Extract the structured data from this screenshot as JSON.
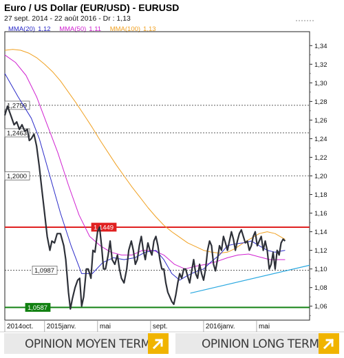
{
  "header": {
    "title": "Euro / US Dollar (EUR/USD) - EURUSD",
    "subtitle": "27 sept. 2014 - 22 août 2016 - Dr : 1,13"
  },
  "legend": [
    {
      "label": "MMA(20)",
      "value": "1,12",
      "color": "#2a2ac8"
    },
    {
      "label": "MMA(50)",
      "value": "1,11",
      "color": "#d020d0"
    },
    {
      "label": "MMA(100)",
      "value": "1,13",
      "color": "#f0a020"
    }
  ],
  "footer": {
    "left_label": "OPINION MOYEN TERME",
    "right_label": "OPINION LONG TERME",
    "arrow_icon": "arrow-up-right-icon",
    "accent": "#f0b400"
  },
  "chart_data": {
    "type": "line",
    "ylim": [
      1.045,
      1.355
    ],
    "y_ticks": [
      "1,06",
      "1,08",
      "1,10",
      "1,12",
      "1,14",
      "1,16",
      "1,18",
      "1,20",
      "1,22",
      "1,24",
      "1,26",
      "1,28",
      "1,30",
      "1,32",
      "1,34"
    ],
    "y_tick_values": [
      1.06,
      1.08,
      1.1,
      1.12,
      1.14,
      1.16,
      1.18,
      1.2,
      1.22,
      1.24,
      1.26,
      1.28,
      1.3,
      1.32,
      1.34
    ],
    "x_ticks": [
      {
        "label": "2014oct.",
        "x": 0
      },
      {
        "label": "2015janv.",
        "x": 3
      },
      {
        "label": "mai",
        "x": 7
      },
      {
        "label": "sept.",
        "x": 11
      },
      {
        "label": "2016janv.",
        "x": 15
      },
      {
        "label": "mai",
        "x": 19
      }
    ],
    "x_range": [
      0,
      23
    ],
    "grid": false,
    "levels": [
      {
        "label": "1,2759",
        "value": 1.2759,
        "style": "dashed",
        "color": "#444444"
      },
      {
        "label": "1,2463",
        "value": 1.2463,
        "style": "dashed",
        "color": "#444444"
      },
      {
        "label": "1,2000",
        "value": 1.2,
        "style": "dashed",
        "color": "#444444"
      },
      {
        "label": "1,1449",
        "value": 1.1449,
        "style": "solid",
        "color": "#e02020"
      },
      {
        "label": "1,0987",
        "value": 1.0987,
        "style": "dashed",
        "color": "#444444"
      },
      {
        "label": "1,0587",
        "value": 1.0587,
        "style": "solid",
        "color": "#108010"
      }
    ],
    "trendline": {
      "color": "#29a8e0",
      "points": [
        [
          14.0,
          1.074
        ],
        [
          23.0,
          1.104
        ]
      ]
    },
    "series": [
      {
        "name": "EURUSD",
        "color": "#2d3038",
        "points": [
          [
            0,
            1.265
          ],
          [
            0.2,
            1.275
          ],
          [
            0.45,
            1.265
          ],
          [
            0.7,
            1.255
          ],
          [
            0.9,
            1.258
          ],
          [
            1.1,
            1.25
          ],
          [
            1.3,
            1.255
          ],
          [
            1.5,
            1.248
          ],
          [
            1.7,
            1.25
          ],
          [
            1.85,
            1.238
          ],
          [
            2.0,
            1.24
          ],
          [
            2.2,
            1.245
          ],
          [
            2.4,
            1.232
          ],
          [
            2.6,
            1.21
          ],
          [
            2.8,
            1.185
          ],
          [
            3.0,
            1.16
          ],
          [
            3.2,
            1.135
          ],
          [
            3.4,
            1.12
          ],
          [
            3.55,
            1.13
          ],
          [
            3.75,
            1.128
          ],
          [
            3.95,
            1.138
          ],
          [
            4.2,
            1.138
          ],
          [
            4.45,
            1.125
          ],
          [
            4.6,
            1.11
          ],
          [
            4.8,
            1.075
          ],
          [
            4.95,
            1.057
          ],
          [
            5.1,
            1.068
          ],
          [
            5.3,
            1.08
          ],
          [
            5.5,
            1.088
          ],
          [
            5.65,
            1.09
          ],
          [
            5.8,
            1.06
          ],
          [
            5.95,
            1.07
          ],
          [
            6.15,
            1.1
          ],
          [
            6.3,
            1.1
          ],
          [
            6.5,
            1.09
          ],
          [
            6.65,
            1.12
          ],
          [
            6.8,
            1.118
          ],
          [
            7.0,
            1.14
          ],
          [
            7.15,
            1.145
          ],
          [
            7.3,
            1.125
          ],
          [
            7.45,
            1.1
          ],
          [
            7.6,
            1.1
          ],
          [
            7.8,
            1.115
          ],
          [
            7.95,
            1.13
          ],
          [
            8.1,
            1.11
          ],
          [
            8.3,
            1.105
          ],
          [
            8.5,
            1.115
          ],
          [
            8.65,
            1.1
          ],
          [
            8.8,
            1.09
          ],
          [
            9.0,
            1.085
          ],
          [
            9.2,
            1.1
          ],
          [
            9.35,
            1.12
          ],
          [
            9.55,
            1.13
          ],
          [
            9.7,
            1.12
          ],
          [
            9.85,
            1.105
          ],
          [
            10.0,
            1.11
          ],
          [
            10.15,
            1.125
          ],
          [
            10.3,
            1.135
          ],
          [
            10.45,
            1.12
          ],
          [
            10.6,
            1.11
          ],
          [
            10.8,
            1.128
          ],
          [
            10.95,
            1.12
          ],
          [
            11.1,
            1.115
          ],
          [
            11.25,
            1.13
          ],
          [
            11.4,
            1.135
          ],
          [
            11.55,
            1.125
          ],
          [
            11.7,
            1.11
          ],
          [
            11.85,
            1.1
          ],
          [
            12.0,
            1.1
          ],
          [
            12.15,
            1.085
          ],
          [
            12.3,
            1.075
          ],
          [
            12.45,
            1.07
          ],
          [
            12.6,
            1.065
          ],
          [
            12.75,
            1.062
          ],
          [
            12.9,
            1.072
          ],
          [
            13.05,
            1.085
          ],
          [
            13.2,
            1.095
          ],
          [
            13.35,
            1.09
          ],
          [
            13.5,
            1.1
          ],
          [
            13.65,
            1.1
          ],
          [
            13.8,
            1.092
          ],
          [
            13.95,
            1.085
          ],
          [
            14.1,
            1.098
          ],
          [
            14.25,
            1.11
          ],
          [
            14.4,
            1.095
          ],
          [
            14.55,
            1.09
          ],
          [
            14.7,
            1.105
          ],
          [
            14.85,
            1.095
          ],
          [
            15.0,
            1.088
          ],
          [
            15.15,
            1.1
          ],
          [
            15.3,
            1.12
          ],
          [
            15.45,
            1.13
          ],
          [
            15.6,
            1.125
          ],
          [
            15.75,
            1.105
          ],
          [
            15.9,
            1.098
          ],
          [
            16.05,
            1.11
          ],
          [
            16.2,
            1.125
          ],
          [
            16.35,
            1.12
          ],
          [
            16.5,
            1.135
          ],
          [
            16.65,
            1.128
          ],
          [
            16.8,
            1.12
          ],
          [
            16.95,
            1.13
          ],
          [
            17.1,
            1.14
          ],
          [
            17.25,
            1.132
          ],
          [
            17.4,
            1.12
          ],
          [
            17.55,
            1.13
          ],
          [
            17.7,
            1.138
          ],
          [
            17.85,
            1.142
          ],
          [
            18.0,
            1.135
          ],
          [
            18.15,
            1.128
          ],
          [
            18.3,
            1.13
          ],
          [
            18.45,
            1.12
          ],
          [
            18.6,
            1.125
          ],
          [
            18.75,
            1.135
          ],
          [
            18.9,
            1.14
          ],
          [
            19.05,
            1.125
          ],
          [
            19.2,
            1.13
          ],
          [
            19.35,
            1.135
          ],
          [
            19.5,
            1.12
          ],
          [
            19.65,
            1.13
          ],
          [
            19.8,
            1.12
          ],
          [
            19.95,
            1.1
          ],
          [
            20.1,
            1.105
          ],
          [
            20.25,
            1.118
          ],
          [
            20.4,
            1.1
          ],
          [
            20.55,
            1.12
          ],
          [
            20.7,
            1.115
          ],
          [
            20.85,
            1.128
          ],
          [
            21.0,
            1.132
          ],
          [
            21.15,
            1.13
          ]
        ]
      },
      {
        "name": "MMA(20)",
        "color": "#2a2ac8",
        "points": [
          [
            0,
            1.31
          ],
          [
            1,
            1.285
          ],
          [
            2,
            1.262
          ],
          [
            2.6,
            1.24
          ],
          [
            3.4,
            1.2
          ],
          [
            4.2,
            1.16
          ],
          [
            5.0,
            1.125
          ],
          [
            5.8,
            1.095
          ],
          [
            6.6,
            1.095
          ],
          [
            7.4,
            1.107
          ],
          [
            8.2,
            1.112
          ],
          [
            9.0,
            1.11
          ],
          [
            9.8,
            1.112
          ],
          [
            10.6,
            1.118
          ],
          [
            11.4,
            1.12
          ],
          [
            12.0,
            1.11
          ],
          [
            12.6,
            1.095
          ],
          [
            13.2,
            1.088
          ],
          [
            13.8,
            1.093
          ],
          [
            14.4,
            1.097
          ],
          [
            15.0,
            1.1
          ],
          [
            15.6,
            1.108
          ],
          [
            16.2,
            1.115
          ],
          [
            16.8,
            1.125
          ],
          [
            17.4,
            1.127
          ],
          [
            18.0,
            1.128
          ],
          [
            18.6,
            1.13
          ],
          [
            19.2,
            1.125
          ],
          [
            19.8,
            1.12
          ],
          [
            20.4,
            1.118
          ],
          [
            21.15,
            1.12
          ]
        ]
      },
      {
        "name": "MMA(50)",
        "color": "#d020d0",
        "points": [
          [
            0,
            1.33
          ],
          [
            0.8,
            1.322
          ],
          [
            1.6,
            1.308
          ],
          [
            2.4,
            1.285
          ],
          [
            3.2,
            1.255
          ],
          [
            4.0,
            1.225
          ],
          [
            4.8,
            1.19
          ],
          [
            5.6,
            1.158
          ],
          [
            6.4,
            1.135
          ],
          [
            7.2,
            1.125
          ],
          [
            8.0,
            1.118
          ],
          [
            8.8,
            1.115
          ],
          [
            9.6,
            1.115
          ],
          [
            10.4,
            1.12
          ],
          [
            11.2,
            1.12
          ],
          [
            12.0,
            1.115
          ],
          [
            12.8,
            1.105
          ],
          [
            13.6,
            1.1
          ],
          [
            14.4,
            1.103
          ],
          [
            15.2,
            1.105
          ],
          [
            16.0,
            1.108
          ],
          [
            16.8,
            1.112
          ],
          [
            17.6,
            1.115
          ],
          [
            18.4,
            1.116
          ],
          [
            19.2,
            1.113
          ],
          [
            20.0,
            1.11
          ],
          [
            20.6,
            1.11
          ],
          [
            21.15,
            1.11
          ]
        ]
      },
      {
        "name": "MMA(100)",
        "color": "#f0a020",
        "points": [
          [
            0,
            1.335
          ],
          [
            0.6,
            1.336
          ],
          [
            1.2,
            1.335
          ],
          [
            1.8,
            1.332
          ],
          [
            2.4,
            1.327
          ],
          [
            3.0,
            1.32
          ],
          [
            3.6,
            1.312
          ],
          [
            4.2,
            1.302
          ],
          [
            4.8,
            1.29
          ],
          [
            5.4,
            1.278
          ],
          [
            6.0,
            1.265
          ],
          [
            6.6,
            1.252
          ],
          [
            7.2,
            1.238
          ],
          [
            7.8,
            1.225
          ],
          [
            8.4,
            1.212
          ],
          [
            9.0,
            1.2
          ],
          [
            9.6,
            1.188
          ],
          [
            10.2,
            1.177
          ],
          [
            10.8,
            1.166
          ],
          [
            11.4,
            1.156
          ],
          [
            12.0,
            1.147
          ],
          [
            12.6,
            1.14
          ],
          [
            13.2,
            1.134
          ],
          [
            13.8,
            1.128
          ],
          [
            14.4,
            1.124
          ],
          [
            15.0,
            1.12
          ],
          [
            15.6,
            1.118
          ],
          [
            16.2,
            1.117
          ],
          [
            16.8,
            1.118
          ],
          [
            17.4,
            1.122
          ],
          [
            18.0,
            1.128
          ],
          [
            18.6,
            1.133
          ],
          [
            19.2,
            1.138
          ],
          [
            19.8,
            1.14
          ],
          [
            20.4,
            1.138
          ],
          [
            21.0,
            1.133
          ],
          [
            21.15,
            1.132
          ]
        ]
      }
    ]
  }
}
